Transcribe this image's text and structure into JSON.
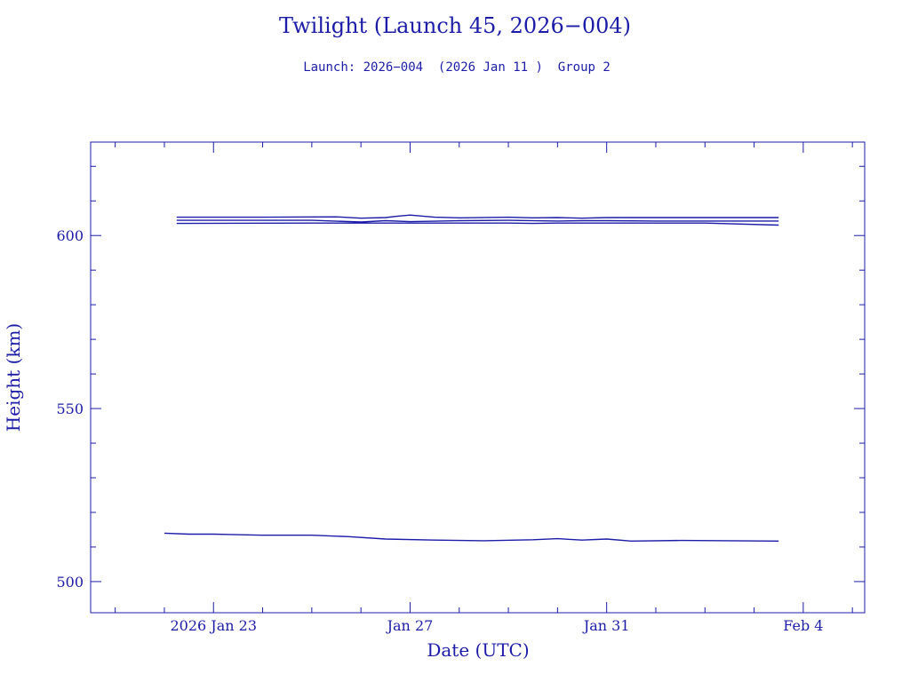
{
  "chart_data": {
    "type": "line",
    "title": "Twilight (Launch 45, 2026−004)",
    "subtitle": "Launch: 2026−004  (2026 Jan 11 )  Group 2",
    "xlabel": "Date (UTC)",
    "ylabel": "Height (km)",
    "x_axis": {
      "type": "date",
      "range": [
        "2026-01-20T12:00",
        "2026-02-05T06:00"
      ],
      "major_ticks": [
        {
          "date": "2026-01-23",
          "label": "2026 Jan 23"
        },
        {
          "date": "2026-01-27",
          "label": "Jan 27"
        },
        {
          "date": "2026-01-31",
          "label": "Jan 31"
        },
        {
          "date": "2026-02-04",
          "label": "Feb  4"
        }
      ]
    },
    "y_axis": {
      "range": [
        491,
        627
      ],
      "major_ticks": [
        500,
        550,
        600
      ],
      "minor_step": 10
    },
    "grid": false,
    "legend": "none",
    "color": "#1c1ca8",
    "series": [
      {
        "x": [
          "2026-01-22T00:00",
          "2026-01-22T12:00",
          "2026-01-23T00:00",
          "2026-01-24T00:00",
          "2026-01-25T00:00",
          "2026-01-25T18:00",
          "2026-01-26T12:00",
          "2026-01-27T12:00",
          "2026-01-28T12:00",
          "2026-01-29T12:00",
          "2026-01-30T00:00",
          "2026-01-30T12:00",
          "2026-01-31T00:00",
          "2026-01-31T12:00",
          "2026-02-01T12:00",
          "2026-02-02T12:00",
          "2026-02-03T12:00"
        ],
        "y": [
          514.0,
          513.7,
          513.7,
          513.4,
          513.4,
          513.0,
          512.3,
          512.0,
          511.8,
          512.1,
          512.4,
          512.0,
          512.3,
          511.7,
          511.9,
          511.8,
          511.7
        ]
      },
      {
        "x": [
          "2026-01-22T06:00",
          "2026-01-24T00:00",
          "2026-01-25T12:00",
          "2026-01-26T00:00",
          "2026-01-26T12:00",
          "2026-01-26T18:00",
          "2026-01-27T00:00",
          "2026-01-27T12:00",
          "2026-01-28T00:00",
          "2026-01-29T00:00",
          "2026-01-29T12:00",
          "2026-01-30T00:00",
          "2026-01-30T12:00",
          "2026-01-31T00:00",
          "2026-02-01T00:00",
          "2026-02-02T00:00",
          "2026-02-03T12:00"
        ],
        "y": [
          605.3,
          605.3,
          605.4,
          605.0,
          605.2,
          605.6,
          605.9,
          605.3,
          605.1,
          605.3,
          605.1,
          605.2,
          605.0,
          605.2,
          605.2,
          605.2,
          605.2
        ]
      },
      {
        "x": [
          "2026-01-22T06:00",
          "2026-01-23T12:00",
          "2026-01-25T00:00",
          "2026-01-26T00:00",
          "2026-01-26T12:00",
          "2026-01-27T00:00",
          "2026-01-28T00:00",
          "2026-01-29T00:00",
          "2026-01-30T00:00",
          "2026-01-30T12:00",
          "2026-01-31T00:00",
          "2026-02-01T00:00",
          "2026-02-03T12:00"
        ],
        "y": [
          604.4,
          604.4,
          604.4,
          603.9,
          604.3,
          604.0,
          604.3,
          604.4,
          604.2,
          604.3,
          604.3,
          604.2,
          604.2
        ]
      },
      {
        "x": [
          "2026-01-22T06:00",
          "2026-01-25T00:00",
          "2026-01-26T18:00",
          "2026-01-27T12:00",
          "2026-01-29T00:00",
          "2026-01-29T12:00",
          "2026-01-30T00:00",
          "2026-01-31T00:00",
          "2026-02-01T00:00",
          "2026-02-02T00:00",
          "2026-02-03T12:00"
        ],
        "y": [
          603.5,
          603.6,
          603.6,
          603.6,
          603.6,
          603.5,
          603.6,
          603.6,
          603.6,
          603.6,
          603.0
        ]
      }
    ]
  }
}
